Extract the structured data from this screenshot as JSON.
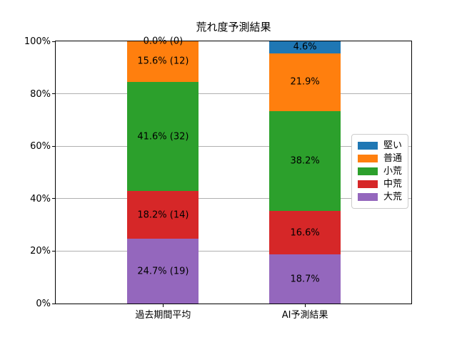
{
  "chart_data": {
    "type": "bar",
    "stacked": true,
    "title": "荒れ度予測結果",
    "categories": [
      "過去期間平均",
      "AI予測結果"
    ],
    "series": [
      {
        "name": "堅い",
        "color": "#1f77b4",
        "values": [
          0.0,
          4.6
        ],
        "bar_labels": [
          "0.0% (0)",
          "4.6%"
        ]
      },
      {
        "name": "普通",
        "color": "#ff7f0e",
        "values": [
          15.6,
          21.9
        ],
        "bar_labels": [
          "15.6% (12)",
          "21.9%"
        ]
      },
      {
        "name": "小荒",
        "color": "#2ca02c",
        "values": [
          41.6,
          38.2
        ],
        "bar_labels": [
          "41.6% (32)",
          "38.2%"
        ]
      },
      {
        "name": "中荒",
        "color": "#d62728",
        "values": [
          18.2,
          16.6
        ],
        "bar_labels": [
          "18.2% (14)",
          "16.6%"
        ]
      },
      {
        "name": "大荒",
        "color": "#9467bd",
        "values": [
          24.7,
          18.7
        ],
        "bar_labels": [
          "24.7% (19)",
          "18.7%"
        ]
      }
    ],
    "stack_order_bottom_to_top": [
      "大荒",
      "中荒",
      "小荒",
      "普通",
      "堅い"
    ],
    "y_ticks": [
      "0%",
      "20%",
      "40%",
      "60%",
      "80%",
      "100%"
    ],
    "ylim": [
      0,
      100
    ],
    "grid": true,
    "legend_position": "center right",
    "colors": {
      "grid": "#b0b0b0",
      "spine": "#000000",
      "text": "#000000",
      "legend_border": "#cccccc",
      "background": "#ffffff"
    }
  }
}
